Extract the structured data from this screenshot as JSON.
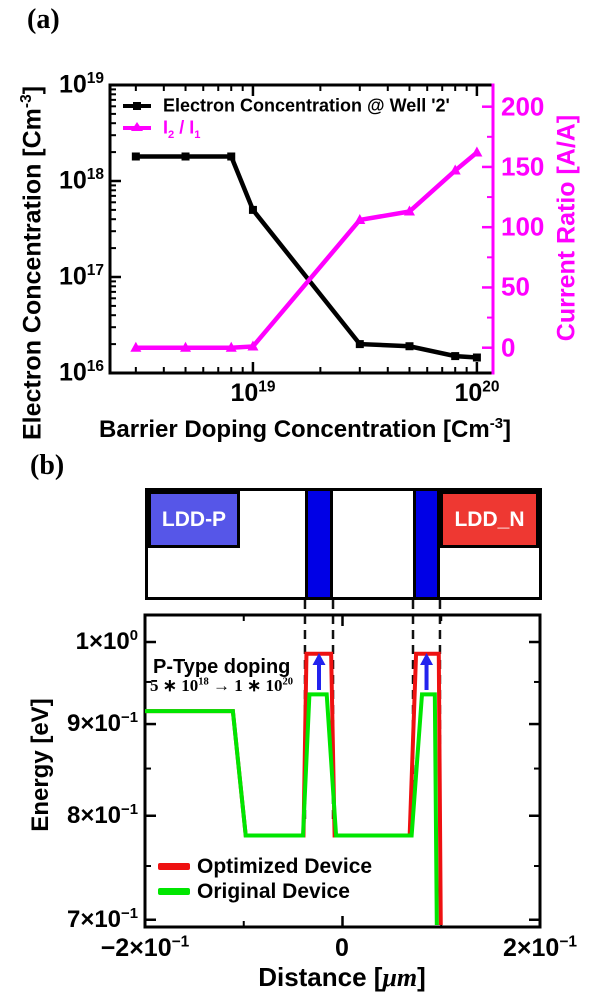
{
  "figure": {
    "background": "#ffffff"
  },
  "panel_a": {
    "tag": "(a)",
    "y_left_label": {
      "pre": "Electron Concentration [Cm",
      "exp": "-3",
      "post": "]"
    },
    "y_right_label": "Current Ratio [A/A]",
    "x_label": {
      "pre": "Barrier Doping Concentration [Cm",
      "exp": "-3",
      "post": "]"
    },
    "legend": {
      "item1": {
        "label": "Electron Concentration @ Well '2'",
        "color": "#000000"
      },
      "item2": {
        "p1": "I",
        "s1": "2",
        "p2": " / I",
        "s2": "1",
        "color": "#ff00ff"
      }
    }
  },
  "panel_b": {
    "tag": "(b)",
    "schematic": {
      "ldd_p_label": "LDD-P",
      "ldd_n_label": "LDD_N",
      "ldd_p_color": "#5656e8",
      "ldd_n_color": "#ee3832",
      "barrier_color": "#0000e6"
    },
    "annotation": {
      "title": "P-Type doping",
      "p1": "5 ∗ 10",
      "e1": "18",
      "p2": " → 1 ∗ 10",
      "e2": "20"
    },
    "legend": {
      "optimized": "Optimized Device",
      "original": "Original Device"
    },
    "y_label": "Energy [eV]",
    "x_label": {
      "pre": "Distance [",
      "unit": "μm",
      "post": "]"
    }
  },
  "chart_data": [
    {
      "type": "line",
      "title": "",
      "xlabel": "Barrier Doping Concentration [Cm^-3]",
      "ylabel_left": "Electron Concentration [Cm^-3]",
      "ylabel_right": "Current Ratio [A/A]",
      "x_scale": "log",
      "xlim": [
        2.3e+18,
        1.18e+20
      ],
      "ylim_left": [
        1e+16,
        1e+19
      ],
      "ylim_right": [
        -21,
        218
      ],
      "grid": false,
      "legend_position": "upper left",
      "x": [
        3e+18,
        5e+18,
        8e+18,
        1e+19,
        3e+19,
        5e+19,
        8e+19,
        1e+20
      ],
      "series": [
        {
          "name": "Electron Concentration @ Well '2'",
          "axis": "left",
          "color": "#000000",
          "marker": "square",
          "values": [
            1.8e+18,
            1.8e+18,
            1.8e+18,
            5e+17,
            2e+16,
            1.9e+16,
            1.5e+16,
            1.45e+16
          ]
        },
        {
          "name": "I2 / I1",
          "axis": "right",
          "color": "#ff00ff",
          "marker": "triangle",
          "values": [
            0,
            0,
            0,
            1,
            106,
            113,
            147,
            162
          ]
        }
      ],
      "x_ticks": [
        {
          "base": "10",
          "exp": "19",
          "value": 1e+19
        },
        {
          "base": "10",
          "exp": "20",
          "value": 1e+20
        }
      ],
      "y_ticks_left": [
        {
          "base": "10",
          "exp": "19",
          "value": 1e+19
        },
        {
          "base": "10",
          "exp": "18",
          "value": 1e+18
        },
        {
          "base": "10",
          "exp": "17",
          "value": 1e+17
        },
        {
          "base": "10",
          "exp": "16",
          "value": 1e+16
        }
      ],
      "y_ticks_right": [
        {
          "label": "200",
          "value": 200
        },
        {
          "label": "150",
          "value": 150
        },
        {
          "label": "100",
          "value": 100
        },
        {
          "label": "50",
          "value": 50
        },
        {
          "label": "0",
          "value": 0
        }
      ],
      "y_minor_ticks_right": [
        25,
        75,
        125,
        175
      ]
    },
    {
      "type": "line",
      "title": "",
      "xlabel": "Distance [μm]",
      "ylabel": "Energy [eV]",
      "x_scale": "linear",
      "y_scale": "log",
      "xlim": [
        -0.2,
        0.2
      ],
      "ylim": [
        0.6935,
        1.0353
      ],
      "grid": false,
      "legend_position": "lower left",
      "x_ticks": [
        {
          "base": "−2×10",
          "exp": "−1",
          "value": -0.2
        },
        {
          "base": "0",
          "exp": "",
          "value": 0
        },
        {
          "base": "2×10",
          "exp": "−1",
          "value": 0.2
        }
      ],
      "x_minor_ticks": [
        -0.1,
        0.1
      ],
      "y_ticks": [
        {
          "base": "1×10",
          "exp": "0",
          "value": 1.0
        },
        {
          "base": "9×10",
          "exp": "−1",
          "value": 0.9
        },
        {
          "base": "8×10",
          "exp": "−1",
          "value": 0.8
        },
        {
          "base": "7×10",
          "exp": "−1",
          "value": 0.7
        }
      ],
      "y_minor_ticks": [
        0.95,
        0.85,
        0.75
      ],
      "series": [
        {
          "name": "Optimized Device",
          "color": "#ee1111",
          "points": [
            [
              -0.2,
              0.915
            ],
            [
              -0.111,
              0.915
            ],
            [
              -0.098,
              0.78
            ],
            [
              -0.0395,
              0.78
            ],
            [
              -0.0365,
              0.985
            ],
            [
              -0.0115,
              0.985
            ],
            [
              -0.008,
              0.78
            ],
            [
              0.068,
              0.78
            ],
            [
              0.0745,
              0.985
            ],
            [
              0.0975,
              0.985
            ],
            [
              0.0995,
              0.55
            ]
          ]
        },
        {
          "name": "Original Device",
          "color": "#00e600",
          "points": [
            [
              -0.2,
              0.915
            ],
            [
              -0.111,
              0.915
            ],
            [
              -0.098,
              0.78
            ],
            [
              -0.04,
              0.78
            ],
            [
              -0.0335,
              0.935
            ],
            [
              -0.016,
              0.935
            ],
            [
              -0.0065,
              0.78
            ],
            [
              0.07,
              0.78
            ],
            [
              0.0805,
              0.935
            ],
            [
              0.0935,
              0.935
            ],
            [
              0.0955,
              0.55
            ]
          ]
        }
      ],
      "barrier_regions_x": [
        [
          -0.038,
          -0.0096
        ],
        [
          0.0714,
          0.0987
        ]
      ],
      "doping_arrows_x": [
        -0.0238,
        0.0851
      ],
      "arrow_color": "#2222ee"
    }
  ]
}
